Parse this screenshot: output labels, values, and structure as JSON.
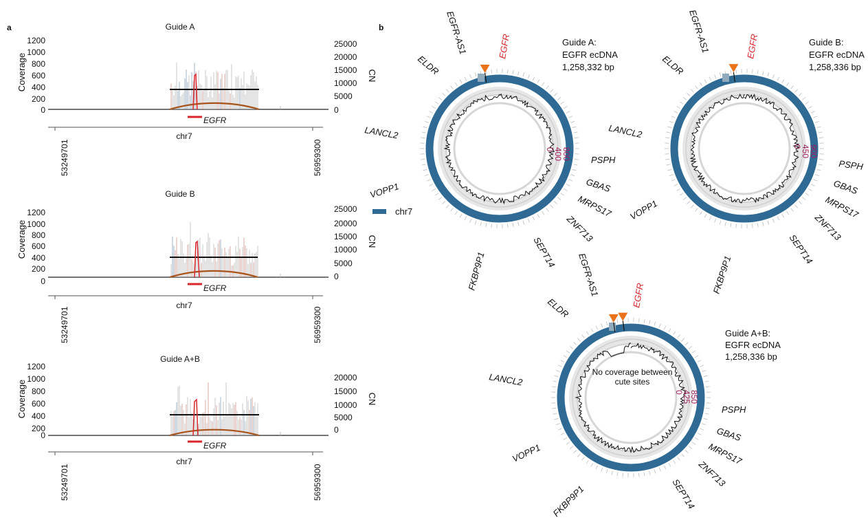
{
  "panel_a": {
    "letter": "a",
    "coverage_label": "Coverage",
    "cn_label": "CN",
    "chrom_label": "chr7",
    "gene_label": "EGFR",
    "x_start": "53249701",
    "x_end": "56959300",
    "plots": [
      {
        "title": "Guide A",
        "left_ticks": [
          "1200",
          "1000",
          "800",
          "600",
          "400",
          "200",
          "0"
        ],
        "right_ticks": [
          "25000",
          "20000",
          "15000",
          "10000",
          "5000",
          "0"
        ]
      },
      {
        "title": "Guide B",
        "left_ticks": [
          "1200",
          "1000",
          "800",
          "600",
          "400",
          "200",
          "0"
        ],
        "right_ticks": [
          "25000",
          "20000",
          "15000",
          "10000",
          "5000",
          "0"
        ]
      },
      {
        "title": "Guide A+B",
        "left_ticks": [
          "1200",
          "1000",
          "800",
          "600",
          "400",
          "200",
          "0"
        ],
        "right_ticks": [
          "20000",
          "15000",
          "10000",
          "5000",
          "0"
        ]
      }
    ]
  },
  "panel_b": {
    "letter": "b",
    "legend_label": "chr7",
    "colors": {
      "ring": "#2e6a93",
      "arrow": "#e8731a",
      "egfr": "#d9262b",
      "scale": "#9b1c5a"
    },
    "circles": [
      {
        "info": [
          "Guide A:",
          "EGFR ecDNA",
          "1,258,332 bp"
        ],
        "scale": [
          "800",
          "400",
          "0"
        ],
        "genes": [
          "EGFR-AS1",
          "EGFR",
          "ELDR",
          "LANCL2",
          "VOPP1",
          "PSPH",
          "GBAS",
          "MRPS17",
          "ZNF713",
          "SEPT14",
          "FKBP9P1"
        ],
        "note": ""
      },
      {
        "info": [
          "Guide B:",
          "EGFR ecDNA",
          "1,258,336 bp"
        ],
        "scale": [
          "900",
          "450",
          "0"
        ],
        "genes": [
          "EGFR-AS1",
          "EGFR",
          "ELDR",
          "LANCL2",
          "VOPP1",
          "PSPH",
          "GBAS",
          "MRPS17",
          "ZNF713",
          "SEPT14",
          "FKBP9P1"
        ],
        "note": ""
      },
      {
        "info": [
          "Guide A+B:",
          "EGFR ecDNA",
          "1,258,336 bp"
        ],
        "scale": [
          "850",
          "425",
          "0"
        ],
        "genes": [
          "EGFR-AS1",
          "EGFR",
          "ELDR",
          "LANCL2",
          "VOPP1",
          "PSPH",
          "GBAS",
          "MRPS17",
          "ZNF713",
          "SEPT14",
          "FKBP9P1"
        ],
        "note": "No coverage between cute sites"
      }
    ]
  }
}
